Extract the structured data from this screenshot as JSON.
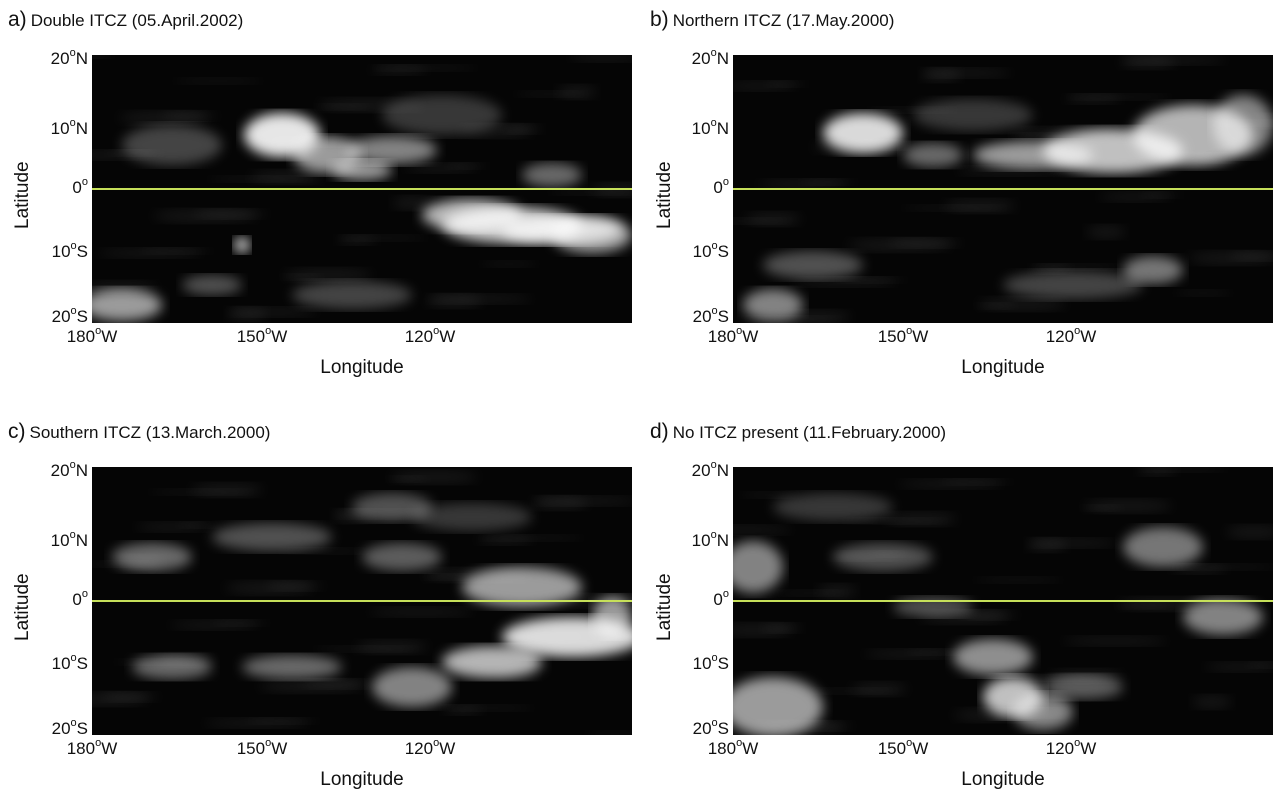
{
  "panels": [
    {
      "tag": "a)",
      "title": "Double ITCZ (05.April.2002)"
    },
    {
      "tag": "b)",
      "title": "Northern ITCZ (17.May.2000)"
    },
    {
      "tag": "c)",
      "title": "Southern ITCZ (13.March.2000)"
    },
    {
      "tag": "d)",
      "title": "No ITCZ present (11.February.2000)"
    }
  ],
  "axes": {
    "y_title": "Latitude",
    "x_title": "Longitude",
    "y_ticks": [
      {
        "num": "20",
        "deg": "o",
        "hemi": "N"
      },
      {
        "num": "10",
        "deg": "o",
        "hemi": "N"
      },
      {
        "num": "0",
        "deg": "o",
        "hemi": ""
      },
      {
        "num": "10",
        "deg": "o",
        "hemi": "S"
      },
      {
        "num": "20",
        "deg": "o",
        "hemi": "S"
      }
    ],
    "x_ticks": [
      {
        "num": "180",
        "deg": "o",
        "hemi": "W"
      },
      {
        "num": "150",
        "deg": "o",
        "hemi": "W"
      },
      {
        "num": "120",
        "deg": "o",
        "hemi": "W"
      }
    ]
  },
  "colors": {
    "equator_line": "#c6e05a",
    "cloud": "#ffffff",
    "background": "#050505"
  }
}
